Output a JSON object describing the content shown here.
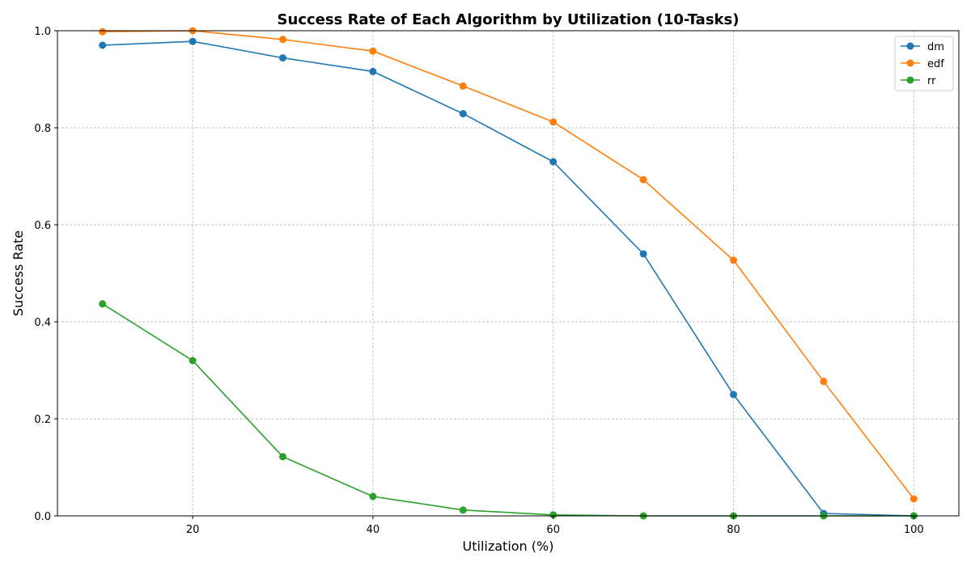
{
  "chart_data": {
    "type": "line",
    "title": "Success Rate of Each Algorithm by Utilization (10-Tasks)",
    "xlabel": "Utilization (%)",
    "ylabel": "Success Rate",
    "xlim": [
      5,
      105
    ],
    "ylim": [
      0.0,
      1.0
    ],
    "xticks": [
      20,
      40,
      60,
      80,
      100
    ],
    "xtick_labels": [
      "20",
      "40",
      "60",
      "80",
      "100"
    ],
    "yticks": [
      0.0,
      0.2,
      0.4,
      0.6,
      0.8,
      1.0
    ],
    "ytick_labels": [
      "0.0",
      "0.2",
      "0.4",
      "0.6",
      "0.8",
      "1.0"
    ],
    "grid": true,
    "legend_position": "top-right",
    "x": [
      10,
      20,
      30,
      40,
      50,
      60,
      70,
      80,
      90,
      100
    ],
    "series": [
      {
        "name": "dm",
        "color": "#1f77b4",
        "values": [
          0.97,
          0.978,
          0.944,
          0.916,
          0.829,
          0.73,
          0.54,
          0.25,
          0.005,
          0.0
        ]
      },
      {
        "name": "edf",
        "color": "#ff7f0e",
        "values": [
          0.998,
          1.0,
          0.982,
          0.958,
          0.886,
          0.812,
          0.693,
          0.527,
          0.277,
          0.035
        ]
      },
      {
        "name": "rr",
        "color": "#2ca02c",
        "values": [
          0.437,
          0.32,
          0.122,
          0.04,
          0.012,
          0.002,
          0.0,
          0.0,
          0.0,
          0.0
        ]
      }
    ]
  }
}
